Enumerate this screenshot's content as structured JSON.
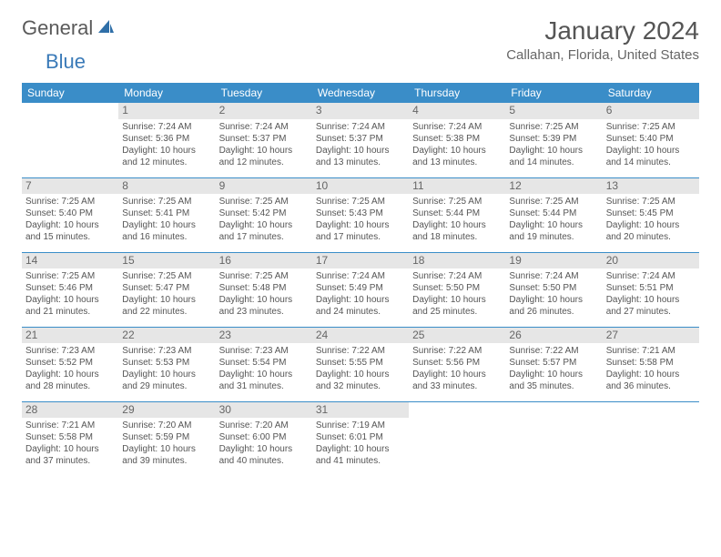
{
  "logo": {
    "word1": "General",
    "word2": "Blue"
  },
  "title": "January 2024",
  "location": "Callahan, Florida, United States",
  "colors": {
    "header_bg": "#3a8dc8",
    "header_text": "#ffffff",
    "daynum_bg": "#e6e6e6",
    "border": "#3a8dc8",
    "body_text": "#555555",
    "logo_gray": "#5a5a5a",
    "logo_blue": "#3a7ab8"
  },
  "typography": {
    "title_fontsize": 28,
    "location_fontsize": 15,
    "dayheader_fontsize": 12,
    "cell_fontsize": 10
  },
  "day_headers": [
    "Sunday",
    "Monday",
    "Tuesday",
    "Wednesday",
    "Thursday",
    "Friday",
    "Saturday"
  ],
  "weeks": [
    [
      {
        "n": "",
        "empty": true
      },
      {
        "n": "1",
        "sr": "7:24 AM",
        "ss": "5:36 PM",
        "dl": "10 hours and 12 minutes."
      },
      {
        "n": "2",
        "sr": "7:24 AM",
        "ss": "5:37 PM",
        "dl": "10 hours and 12 minutes."
      },
      {
        "n": "3",
        "sr": "7:24 AM",
        "ss": "5:37 PM",
        "dl": "10 hours and 13 minutes."
      },
      {
        "n": "4",
        "sr": "7:24 AM",
        "ss": "5:38 PM",
        "dl": "10 hours and 13 minutes."
      },
      {
        "n": "5",
        "sr": "7:25 AM",
        "ss": "5:39 PM",
        "dl": "10 hours and 14 minutes."
      },
      {
        "n": "6",
        "sr": "7:25 AM",
        "ss": "5:40 PM",
        "dl": "10 hours and 14 minutes."
      }
    ],
    [
      {
        "n": "7",
        "sr": "7:25 AM",
        "ss": "5:40 PM",
        "dl": "10 hours and 15 minutes."
      },
      {
        "n": "8",
        "sr": "7:25 AM",
        "ss": "5:41 PM",
        "dl": "10 hours and 16 minutes."
      },
      {
        "n": "9",
        "sr": "7:25 AM",
        "ss": "5:42 PM",
        "dl": "10 hours and 17 minutes."
      },
      {
        "n": "10",
        "sr": "7:25 AM",
        "ss": "5:43 PM",
        "dl": "10 hours and 17 minutes."
      },
      {
        "n": "11",
        "sr": "7:25 AM",
        "ss": "5:44 PM",
        "dl": "10 hours and 18 minutes."
      },
      {
        "n": "12",
        "sr": "7:25 AM",
        "ss": "5:44 PM",
        "dl": "10 hours and 19 minutes."
      },
      {
        "n": "13",
        "sr": "7:25 AM",
        "ss": "5:45 PM",
        "dl": "10 hours and 20 minutes."
      }
    ],
    [
      {
        "n": "14",
        "sr": "7:25 AM",
        "ss": "5:46 PM",
        "dl": "10 hours and 21 minutes."
      },
      {
        "n": "15",
        "sr": "7:25 AM",
        "ss": "5:47 PM",
        "dl": "10 hours and 22 minutes."
      },
      {
        "n": "16",
        "sr": "7:25 AM",
        "ss": "5:48 PM",
        "dl": "10 hours and 23 minutes."
      },
      {
        "n": "17",
        "sr": "7:24 AM",
        "ss": "5:49 PM",
        "dl": "10 hours and 24 minutes."
      },
      {
        "n": "18",
        "sr": "7:24 AM",
        "ss": "5:50 PM",
        "dl": "10 hours and 25 minutes."
      },
      {
        "n": "19",
        "sr": "7:24 AM",
        "ss": "5:50 PM",
        "dl": "10 hours and 26 minutes."
      },
      {
        "n": "20",
        "sr": "7:24 AM",
        "ss": "5:51 PM",
        "dl": "10 hours and 27 minutes."
      }
    ],
    [
      {
        "n": "21",
        "sr": "7:23 AM",
        "ss": "5:52 PM",
        "dl": "10 hours and 28 minutes."
      },
      {
        "n": "22",
        "sr": "7:23 AM",
        "ss": "5:53 PM",
        "dl": "10 hours and 29 minutes."
      },
      {
        "n": "23",
        "sr": "7:23 AM",
        "ss": "5:54 PM",
        "dl": "10 hours and 31 minutes."
      },
      {
        "n": "24",
        "sr": "7:22 AM",
        "ss": "5:55 PM",
        "dl": "10 hours and 32 minutes."
      },
      {
        "n": "25",
        "sr": "7:22 AM",
        "ss": "5:56 PM",
        "dl": "10 hours and 33 minutes."
      },
      {
        "n": "26",
        "sr": "7:22 AM",
        "ss": "5:57 PM",
        "dl": "10 hours and 35 minutes."
      },
      {
        "n": "27",
        "sr": "7:21 AM",
        "ss": "5:58 PM",
        "dl": "10 hours and 36 minutes."
      }
    ],
    [
      {
        "n": "28",
        "sr": "7:21 AM",
        "ss": "5:58 PM",
        "dl": "10 hours and 37 minutes."
      },
      {
        "n": "29",
        "sr": "7:20 AM",
        "ss": "5:59 PM",
        "dl": "10 hours and 39 minutes."
      },
      {
        "n": "30",
        "sr": "7:20 AM",
        "ss": "6:00 PM",
        "dl": "10 hours and 40 minutes."
      },
      {
        "n": "31",
        "sr": "7:19 AM",
        "ss": "6:01 PM",
        "dl": "10 hours and 41 minutes."
      },
      {
        "n": "",
        "empty": true
      },
      {
        "n": "",
        "empty": true
      },
      {
        "n": "",
        "empty": true
      }
    ]
  ],
  "labels": {
    "sunrise": "Sunrise:",
    "sunset": "Sunset:",
    "daylight": "Daylight:"
  }
}
